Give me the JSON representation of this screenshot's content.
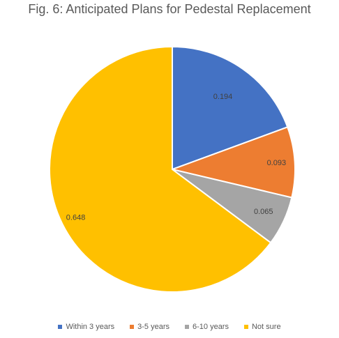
{
  "chart_data": {
    "type": "pie",
    "title": "Fig. 6: Anticipated Plans for Pedestal Replacement",
    "categories": [
      "Within 3 years",
      "3-5 years",
      "6-10 years",
      "Not sure"
    ],
    "values": [
      0.194,
      0.093,
      0.065,
      0.648
    ],
    "data_labels": [
      "0.194",
      "0.093",
      "0.065",
      "0.648"
    ],
    "colors": [
      "#4472C4",
      "#ED7D31",
      "#A5A5A5",
      "#FFC000"
    ],
    "legend_position": "bottom",
    "start_angle": "top",
    "direction": "clockwise"
  },
  "legend": {
    "items": [
      {
        "label": "Within 3 years",
        "color": "#4472C4"
      },
      {
        "label": "3-5 years",
        "color": "#ED7D31"
      },
      {
        "label": "6-10 years",
        "color": "#A5A5A5"
      },
      {
        "label": "Not sure",
        "color": "#FFC000"
      }
    ]
  }
}
